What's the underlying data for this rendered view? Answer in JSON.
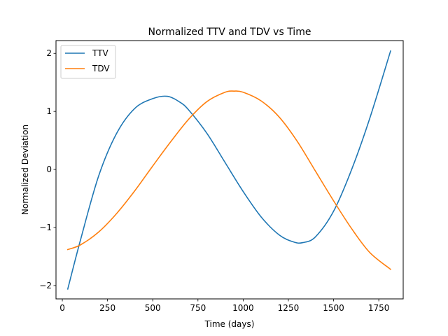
{
  "chart_data": {
    "type": "line",
    "title": "Normalized TTV and TDV vs Time",
    "xlabel": "Time (days)",
    "ylabel": "Normalized Deviation",
    "xlim": [
      -35,
      1885
    ],
    "ylim": [
      -2.23,
      2.22
    ],
    "xticks": [
      0,
      250,
      500,
      750,
      1000,
      1250,
      1500,
      1750
    ],
    "xtick_labels": [
      "0",
      "250",
      "500",
      "750",
      "1000",
      "1250",
      "1500",
      "1750"
    ],
    "yticks": [
      -2,
      -1,
      0,
      1,
      2
    ],
    "ytick_labels": [
      "−2",
      "−1",
      "0",
      "1",
      "2"
    ],
    "grid": false,
    "legend_position": "upper-left",
    "series": [
      {
        "name": "TTV",
        "color": "#1f77b4",
        "x": [
          30,
          100,
          200,
          300,
          400,
          500,
          580,
          650,
          700,
          800,
          900,
          1000,
          1100,
          1200,
          1280,
          1330,
          1400,
          1500,
          1600,
          1700,
          1815
        ],
        "y": [
          -2.06,
          -1.22,
          -0.12,
          0.62,
          1.05,
          1.22,
          1.26,
          1.16,
          1.02,
          0.62,
          0.12,
          -0.38,
          -0.82,
          -1.13,
          -1.25,
          -1.26,
          -1.16,
          -0.72,
          0.0,
          0.88,
          2.04
        ]
      },
      {
        "name": "TDV",
        "color": "#ff7f0e",
        "x": [
          30,
          100,
          200,
          300,
          400,
          500,
          600,
          700,
          800,
          900,
          950,
          1000,
          1100,
          1200,
          1300,
          1400,
          1500,
          1600,
          1700,
          1815
        ],
        "y": [
          -1.38,
          -1.3,
          -1.08,
          -0.76,
          -0.37,
          0.06,
          0.48,
          0.87,
          1.17,
          1.33,
          1.35,
          1.33,
          1.18,
          0.9,
          0.48,
          -0.03,
          -0.54,
          -1.02,
          -1.43,
          -1.72
        ]
      }
    ]
  }
}
